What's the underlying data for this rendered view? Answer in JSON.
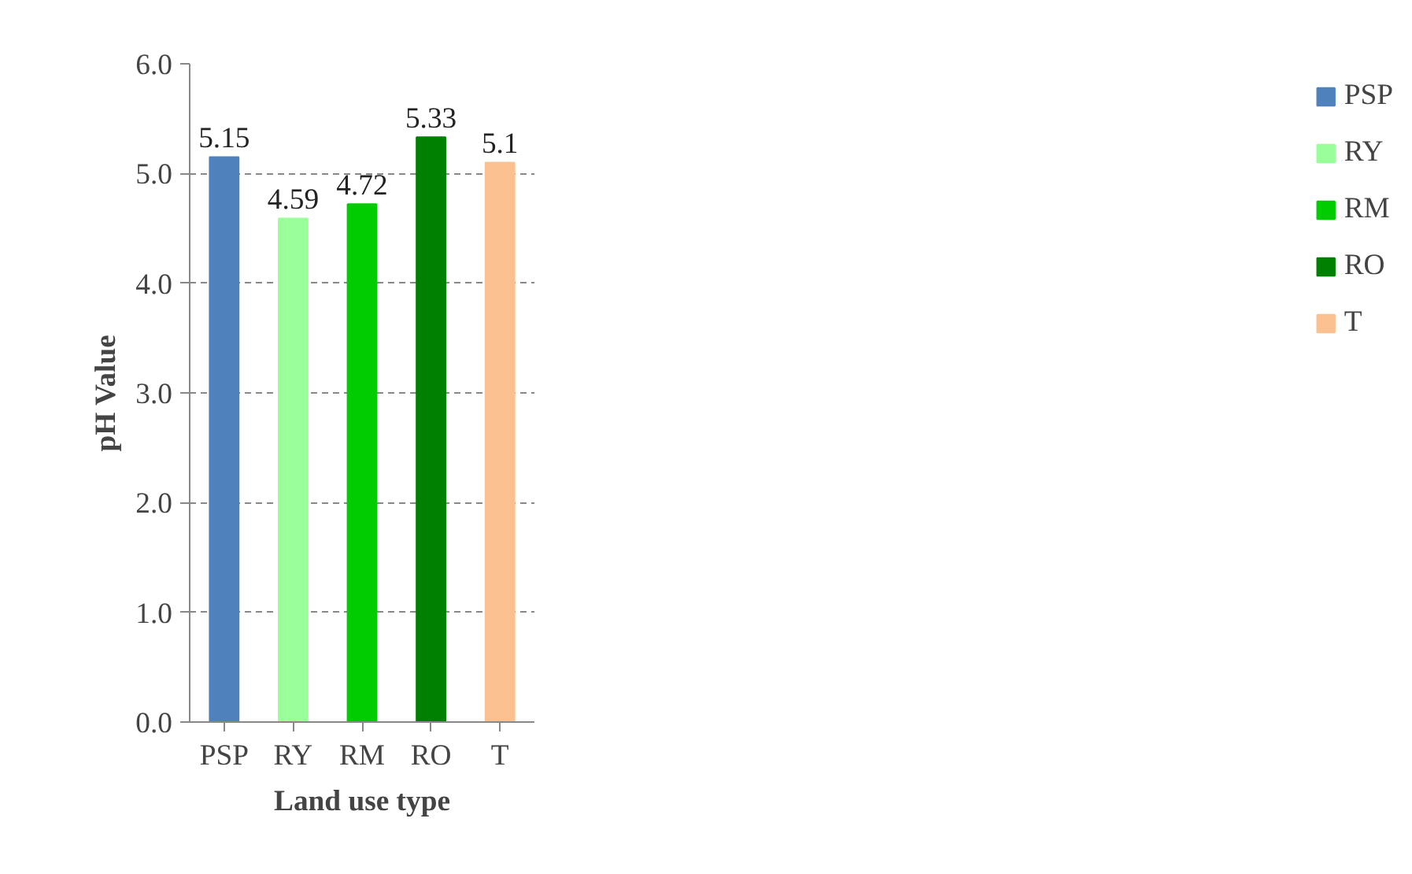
{
  "chart_data": {
    "type": "bar",
    "xlabel": "Land use type",
    "ylabel": "pH Value",
    "categories": [
      "PSP",
      "RY",
      "RM",
      "RO",
      "T"
    ],
    "series": [
      {
        "name": "PSP",
        "color": "#4f81bd",
        "values": [
          5.15,
          null,
          null,
          null,
          null
        ]
      },
      {
        "name": "RY",
        "color": "#99ff99",
        "values": [
          null,
          4.59,
          null,
          null,
          null
        ]
      },
      {
        "name": "RM",
        "color": "#00cc00",
        "values": [
          null,
          null,
          4.72,
          null,
          null
        ]
      },
      {
        "name": "RO",
        "color": "#008000",
        "values": [
          null,
          null,
          null,
          5.33,
          null
        ]
      },
      {
        "name": "T",
        "color": "#fac090",
        "values": [
          null,
          null,
          null,
          null,
          5.1
        ]
      }
    ],
    "ylim": [
      0,
      6
    ],
    "yticks": [
      {
        "value": 0,
        "label": "0.0"
      },
      {
        "value": 1,
        "label": "1.0"
      },
      {
        "value": 2,
        "label": "2.0"
      },
      {
        "value": 3,
        "label": "3.0"
      },
      {
        "value": 4,
        "label": "4.0"
      },
      {
        "value": 5,
        "label": "5.0"
      },
      {
        "value": 6,
        "label": "6.0"
      }
    ],
    "grid": "y",
    "legend": "right",
    "data_labels": true
  }
}
